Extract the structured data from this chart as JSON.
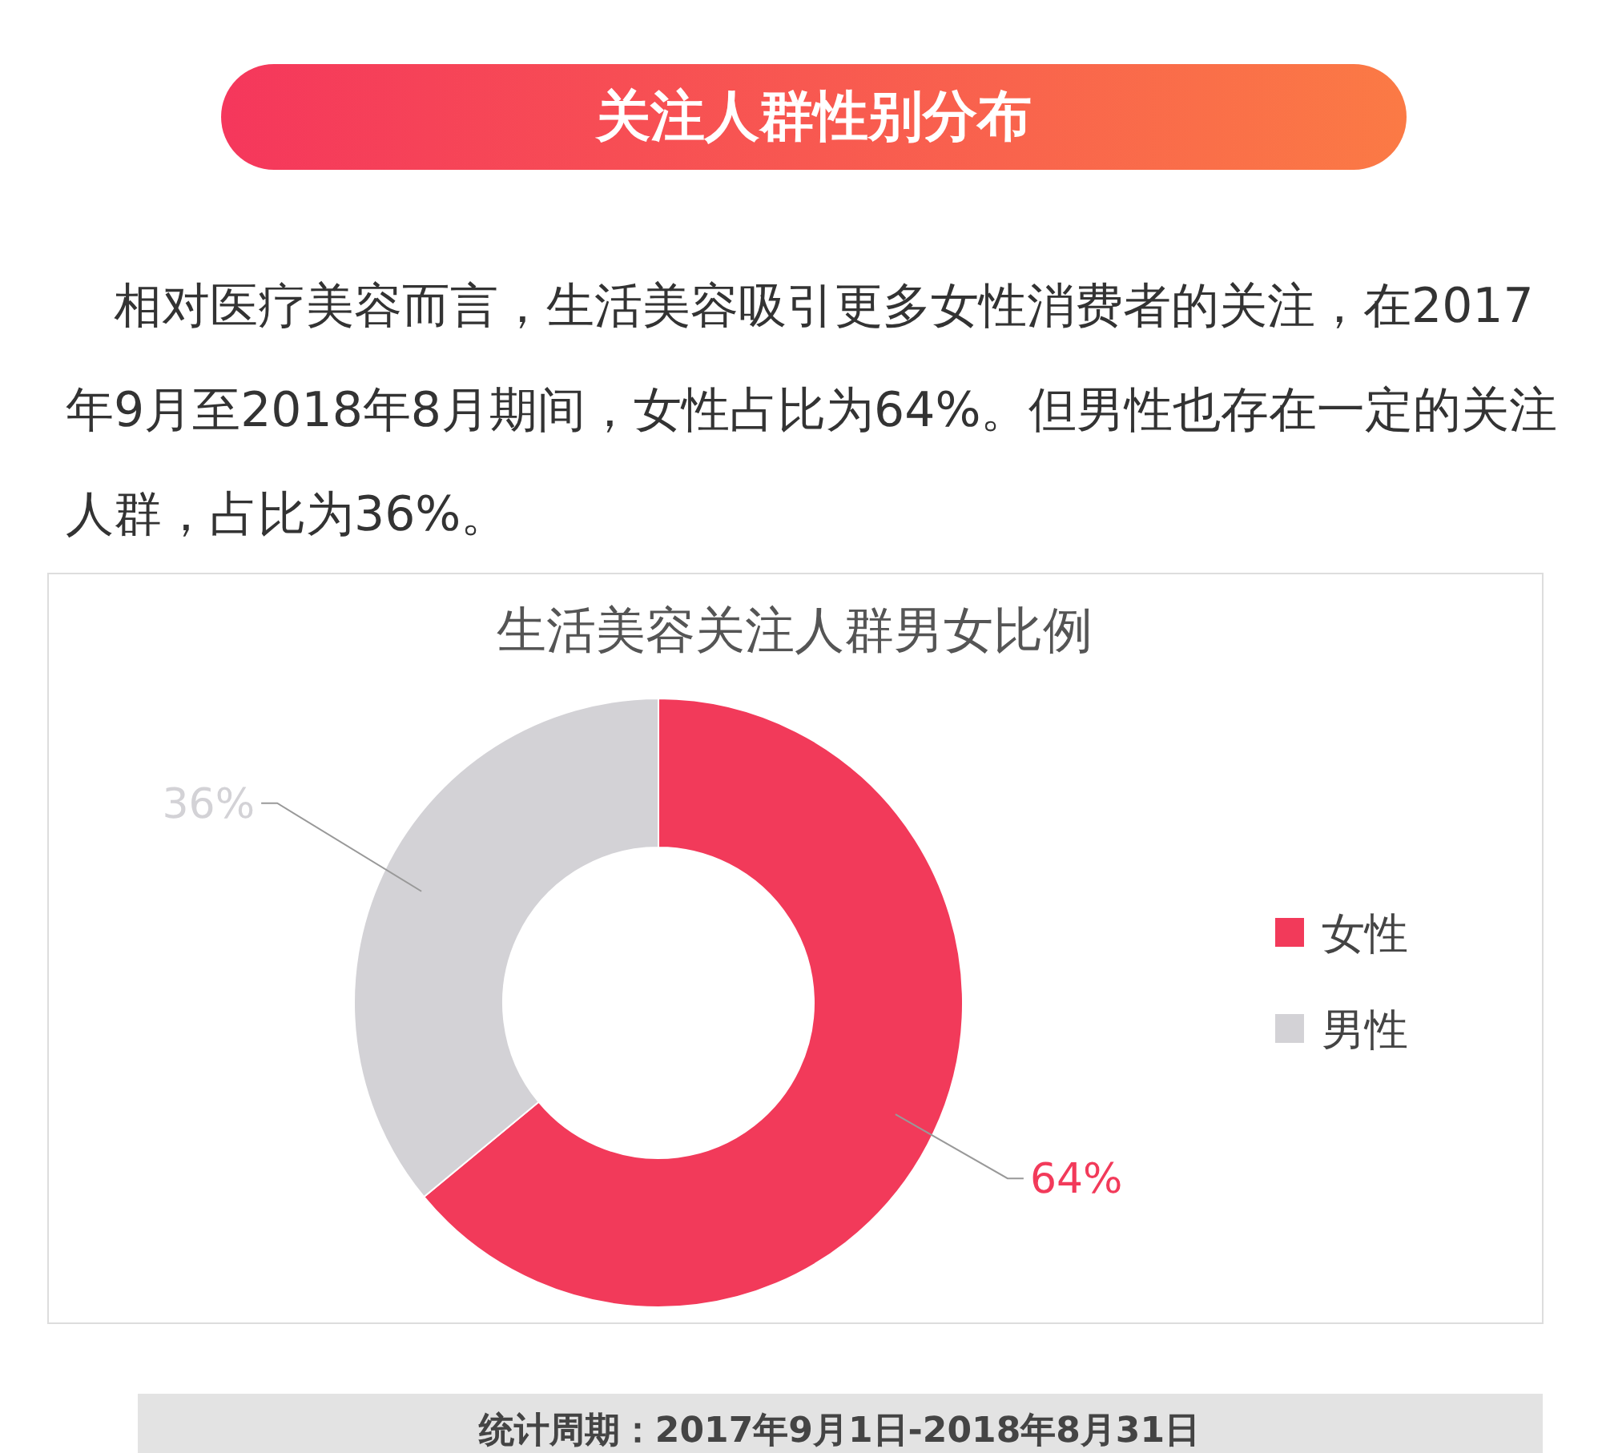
{
  "chart_data": {
    "type": "donut",
    "title": "关注人群性别分布",
    "subtitle": "生活美容关注人群男女比例",
    "categories": [
      "女性",
      "男性"
    ],
    "values": [
      64,
      36
    ],
    "colors": [
      "#f23a5a",
      "#d3d2d6"
    ],
    "value_labels": [
      "64%",
      "36%"
    ],
    "legend": "right",
    "annotations": [
      "相对医疗美容而言，生活美容吸引更多女性消费者的关注，在2017年9月至2018年8月期间，女性占比为64%。但男性也存在一定的关注人群，占比为36%。",
      "统计周期：2017年9月1日-2018年8月31日"
    ]
  }
}
